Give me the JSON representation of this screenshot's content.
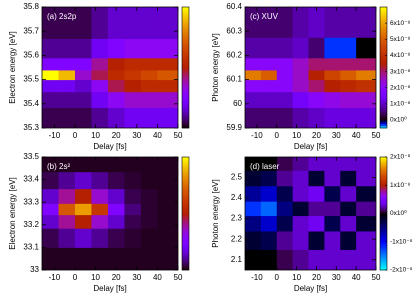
{
  "chart_data": [
    {
      "type": "heatmap",
      "title": "(a) 2s2p",
      "xlabel": "Delay [fs]",
      "ylabel": "Electron energy [eV]",
      "x": [
        -12,
        -4,
        4,
        12,
        20,
        28,
        36,
        44
      ],
      "y": [
        35.35,
        35.42,
        35.48,
        35.52,
        35.56,
        35.62,
        35.72
      ],
      "z": [
        [
          0.05,
          0.05,
          0.05,
          0.1,
          0.15,
          0.2,
          0.2,
          0.2
        ],
        [
          0.1,
          0.1,
          0.1,
          0.2,
          0.3,
          0.35,
          0.35,
          0.35
        ],
        [
          0.2,
          0.2,
          0.15,
          0.3,
          0.45,
          0.5,
          0.55,
          0.55
        ],
        [
          1.0,
          0.9,
          0.35,
          0.45,
          0.55,
          0.6,
          0.65,
          0.7
        ],
        [
          0.25,
          0.25,
          0.25,
          0.4,
          0.5,
          0.55,
          0.55,
          0.55
        ],
        [
          0.1,
          0.1,
          0.1,
          0.2,
          0.25,
          0.3,
          0.3,
          0.3
        ],
        [
          0.05,
          0.05,
          0.05,
          0.1,
          0.15,
          0.15,
          0.15,
          0.15
        ]
      ],
      "xlim": [
        -16,
        50
      ],
      "ylim": [
        35.3,
        35.8
      ],
      "zlim": [
        0,
        1
      ],
      "xticks": [
        -10,
        0,
        10,
        20,
        30,
        40,
        50
      ],
      "yticks": [
        35.3,
        35.4,
        35.5,
        35.6,
        35.7,
        35.8
      ]
    },
    {
      "type": "heatmap",
      "title": "(b) 2s²",
      "xlabel": "Delay [fs]",
      "ylabel": "Electron energy [eV]",
      "x": [
        -12,
        -4,
        4,
        12,
        20,
        28,
        36,
        44
      ],
      "y": [
        33.05,
        33.15,
        33.22,
        33.27,
        33.32,
        33.4,
        33.47
      ],
      "z": [
        [
          0.02,
          0.02,
          0.02,
          0.02,
          0.02,
          0.02,
          0.02,
          0.02
        ],
        [
          0.05,
          0.1,
          0.15,
          0.1,
          0.05,
          0.03,
          0.02,
          0.02
        ],
        [
          0.15,
          0.4,
          0.5,
          0.35,
          0.15,
          0.05,
          0.03,
          0.02
        ],
        [
          0.25,
          0.7,
          0.85,
          0.6,
          0.25,
          0.08,
          0.03,
          0.02
        ],
        [
          0.15,
          0.4,
          0.5,
          0.35,
          0.15,
          0.05,
          0.03,
          0.02
        ],
        [
          0.05,
          0.1,
          0.15,
          0.1,
          0.05,
          0.03,
          0.02,
          0.02
        ],
        [
          0.02,
          0.02,
          0.02,
          0.02,
          0.02,
          0.02,
          0.02,
          0.02
        ]
      ],
      "xlim": [
        -16,
        50
      ],
      "ylim": [
        33,
        33.5
      ],
      "zlim": [
        0,
        1
      ],
      "xticks": [
        -10,
        0,
        10,
        20,
        30,
        40,
        50
      ],
      "yticks": [
        33,
        33.1,
        33.2,
        33.3,
        33.4,
        33.5
      ]
    },
    {
      "type": "heatmap",
      "title": "(c) XUV",
      "xlabel": "Delay [fs]",
      "ylabel": "Photon energy [eV]",
      "x": [
        -12,
        -4,
        4,
        12,
        20,
        28,
        36,
        44
      ],
      "y": [
        59.95,
        60.02,
        60.08,
        60.12,
        60.16,
        60.22,
        60.33
      ],
      "z": [
        [
          5e-09,
          5e-09,
          5e-09,
          8e-09,
          1e-08,
          1.2e-08,
          1.2e-08,
          1.2e-08
        ],
        [
          1e-08,
          1e-08,
          1e-08,
          1.5e-08,
          2e-08,
          2.2e-08,
          2.4e-08,
          2.4e-08
        ],
        [
          2e-08,
          2e-08,
          2e-08,
          2.5e-08,
          3e-08,
          3.5e-08,
          3.8e-08,
          4e-08
        ],
        [
          5.5e-08,
          5e-08,
          2e-08,
          2.5e-08,
          3.5e-08,
          4.5e-08,
          5e-08,
          5.5e-08
        ],
        [
          2e-08,
          2e-08,
          2e-08,
          2.5e-08,
          3e-08,
          3e-08,
          3e-08,
          3e-08
        ],
        [
          8e-09,
          8e-09,
          8e-09,
          1e-08,
          5e-09,
          -3e-09,
          -3e-09,
          0
        ],
        [
          5e-09,
          5e-09,
          5e-09,
          8e-09,
          1e-08,
          8e-09,
          8e-09,
          8e-09
        ]
      ],
      "xlim": [
        -16,
        50
      ],
      "ylim": [
        59.9,
        60.4
      ],
      "zlim": [
        -5e-09,
        7e-08
      ],
      "xticks": [
        -10,
        0,
        10,
        20,
        30,
        40,
        50
      ],
      "yticks": [
        59.9,
        60,
        60.1,
        60.2,
        60.3,
        60.4
      ],
      "zticks": [
        {
          "value": 0,
          "label": "0x10⁰"
        },
        {
          "value": 1e-08,
          "label": "1x10⁻⁸"
        },
        {
          "value": 2e-08,
          "label": "2x10⁻⁸"
        },
        {
          "value": 3e-08,
          "label": "3x10⁻⁸"
        },
        {
          "value": 4e-08,
          "label": "4x10⁻⁸"
        },
        {
          "value": 5e-08,
          "label": "5x10⁻⁸"
        },
        {
          "value": 6e-08,
          "label": "6x10⁻⁸"
        }
      ]
    },
    {
      "type": "heatmap",
      "title": "(d) laser",
      "xlabel": "Delay [fs]",
      "ylabel": "Photon energy [eV]",
      "x": [
        -12,
        -4,
        4,
        12,
        20,
        28,
        36,
        44
      ],
      "y": [
        2.1,
        2.2,
        2.28,
        2.35,
        2.42,
        2.5,
        2.57
      ],
      "z": [
        [
          0,
          0,
          1e-09,
          2e-09,
          3e-09,
          3e-09,
          3e-09,
          3e-09
        ],
        [
          -2e-09,
          -3e-09,
          2e-09,
          3e-09,
          -2e-09,
          3e-09,
          -2e-09,
          3e-09
        ],
        [
          -5e-09,
          -8e-09,
          -3e-09,
          3e-09,
          4e-09,
          -3e-09,
          3e-09,
          -2e-09
        ],
        [
          -1.2e-08,
          -1.4e-08,
          -5e-09,
          -2e-09,
          2e-09,
          2e-09,
          -2e-09,
          2e-09
        ],
        [
          -6e-09,
          -8e-09,
          -3e-09,
          3e-09,
          4e-09,
          -3e-09,
          3e-09,
          -2e-09
        ],
        [
          -2e-09,
          -3e-09,
          2e-09,
          3e-09,
          -2e-09,
          3e-09,
          -2e-09,
          3e-09
        ],
        [
          0,
          0,
          1e-09,
          2e-09,
          3e-09,
          3e-09,
          3e-09,
          3e-09
        ]
      ],
      "xlim": [
        -16,
        50
      ],
      "ylim": [
        2.05,
        2.6
      ],
      "zlim": [
        -2e-08,
        2e-08
      ],
      "xticks": [
        -10,
        0,
        10,
        20,
        30,
        40,
        50
      ],
      "yticks": [
        2.1,
        2.2,
        2.3,
        2.4,
        2.5
      ],
      "zticks": [
        {
          "value": -2e-08,
          "label": "-2x10⁻⁸"
        },
        {
          "value": -1e-08,
          "label": "-1x10⁻⁸"
        },
        {
          "value": 0,
          "label": "0x10⁰"
        },
        {
          "value": 1e-08,
          "label": "1x10⁻⁸"
        },
        {
          "value": 2e-08,
          "label": "2x10⁻⁸"
        }
      ]
    }
  ]
}
